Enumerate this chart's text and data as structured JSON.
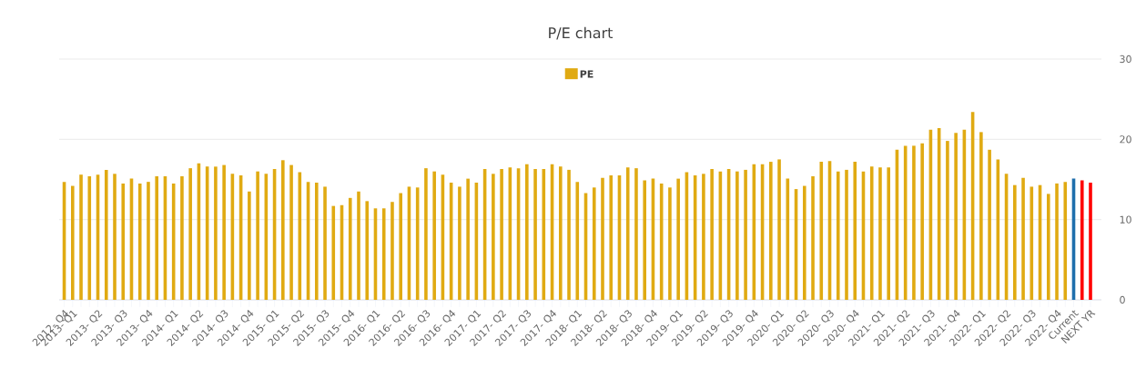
{
  "chart_data": {
    "type": "bar",
    "title": "P/E chart",
    "categories": [
      "2012- Q4",
      "2013- Q1",
      null,
      null,
      "2013- Q2",
      null,
      null,
      "2013- Q3",
      null,
      null,
      "2013- Q4",
      null,
      null,
      "2014- Q1",
      null,
      null,
      "2014- Q2",
      null,
      null,
      "2014- Q3",
      null,
      null,
      "2014- Q4",
      null,
      null,
      "2015- Q1",
      null,
      null,
      "2015- Q2",
      null,
      null,
      "2015- Q3",
      null,
      null,
      "2015- Q4",
      null,
      null,
      "2016- Q1",
      null,
      null,
      "2016- Q2",
      null,
      null,
      "2016- Q3",
      null,
      null,
      "2016- Q4",
      null,
      null,
      "2017- Q1",
      null,
      null,
      "2017- Q2",
      null,
      null,
      "2017- Q3",
      null,
      null,
      "2017- Q4",
      null,
      null,
      "2018- Q1",
      null,
      null,
      "2018- Q2",
      null,
      null,
      "2018- Q3",
      null,
      null,
      "2018- Q4",
      null,
      null,
      "2019- Q1",
      null,
      null,
      "2019- Q2",
      null,
      null,
      "2019- Q3",
      null,
      null,
      "2019- Q4",
      null,
      null,
      "2020- Q1",
      null,
      null,
      "2020- Q2",
      null,
      null,
      "2020- Q3",
      null,
      null,
      "2020- Q4",
      null,
      null,
      "2021- Q1",
      null,
      null,
      "2021- Q2",
      null,
      null,
      "2021- Q3",
      null,
      null,
      "2021- Q4",
      null,
      null,
      "2022- Q1",
      null,
      null,
      "2022- Q2",
      null,
      null,
      "2022- Q3",
      null,
      null,
      "2022- Q4",
      null,
      "Current",
      null,
      "NEXT YR"
    ],
    "series": [
      {
        "name": "PE",
        "color": "#e0aa12",
        "values": [
          14.7,
          14.2,
          15.6,
          15.4,
          15.6,
          16.2,
          15.7,
          14.5,
          15.1,
          14.5,
          14.7,
          15.4,
          15.4,
          14.5,
          15.4,
          16.4,
          17.0,
          16.6,
          16.6,
          16.8,
          15.7,
          15.5,
          13.5,
          16.0,
          15.7,
          16.3,
          17.4,
          16.8,
          15.9,
          14.7,
          14.6,
          14.1,
          11.7,
          11.8,
          12.7,
          13.5,
          12.3,
          11.4,
          11.4,
          12.2,
          13.3,
          14.1,
          14.0,
          16.4,
          16.0,
          15.6,
          14.6,
          14.1,
          15.1,
          14.6,
          16.3,
          15.7,
          16.3,
          16.5,
          16.4,
          16.9,
          16.3,
          16.3,
          16.9,
          16.6,
          16.2,
          14.7,
          13.3,
          14.0,
          15.2,
          15.5,
          15.5,
          16.5,
          16.4,
          14.9,
          15.1,
          14.5,
          14.0,
          15.1,
          15.9,
          15.5,
          15.7,
          16.3,
          16.0,
          16.3,
          16.0,
          16.2,
          16.9,
          16.9,
          17.2,
          17.5,
          15.1,
          13.8,
          14.2,
          15.4,
          17.2,
          17.3,
          16.0,
          16.2,
          17.2,
          16.0,
          16.6,
          16.5,
          16.5,
          18.7,
          19.2,
          19.2,
          19.5,
          21.2,
          21.4,
          19.8,
          20.8,
          21.2,
          23.4,
          20.9,
          18.7,
          17.5,
          15.7,
          14.3,
          15.2,
          14.1,
          14.3,
          13.2,
          14.5,
          14.7,
          15.1,
          14.9,
          14.6
        ],
        "colors": [
          "#e0aa12",
          "#e0aa12",
          "#e0aa12",
          "#e0aa12",
          "#e0aa12",
          "#e0aa12",
          "#e0aa12",
          "#e0aa12",
          "#e0aa12",
          "#e0aa12",
          "#e0aa12",
          "#e0aa12",
          "#e0aa12",
          "#e0aa12",
          "#e0aa12",
          "#e0aa12",
          "#e0aa12",
          "#e0aa12",
          "#e0aa12",
          "#e0aa12",
          "#e0aa12",
          "#e0aa12",
          "#e0aa12",
          "#e0aa12",
          "#e0aa12",
          "#e0aa12",
          "#e0aa12",
          "#e0aa12",
          "#e0aa12",
          "#e0aa12",
          "#e0aa12",
          "#e0aa12",
          "#e0aa12",
          "#e0aa12",
          "#e0aa12",
          "#e0aa12",
          "#e0aa12",
          "#e0aa12",
          "#e0aa12",
          "#e0aa12",
          "#e0aa12",
          "#e0aa12",
          "#e0aa12",
          "#e0aa12",
          "#e0aa12",
          "#e0aa12",
          "#e0aa12",
          "#e0aa12",
          "#e0aa12",
          "#e0aa12",
          "#e0aa12",
          "#e0aa12",
          "#e0aa12",
          "#e0aa12",
          "#e0aa12",
          "#e0aa12",
          "#e0aa12",
          "#e0aa12",
          "#e0aa12",
          "#e0aa12",
          "#e0aa12",
          "#e0aa12",
          "#e0aa12",
          "#e0aa12",
          "#e0aa12",
          "#e0aa12",
          "#e0aa12",
          "#e0aa12",
          "#e0aa12",
          "#e0aa12",
          "#e0aa12",
          "#e0aa12",
          "#e0aa12",
          "#e0aa12",
          "#e0aa12",
          "#e0aa12",
          "#e0aa12",
          "#e0aa12",
          "#e0aa12",
          "#e0aa12",
          "#e0aa12",
          "#e0aa12",
          "#e0aa12",
          "#e0aa12",
          "#e0aa12",
          "#e0aa12",
          "#e0aa12",
          "#e0aa12",
          "#e0aa12",
          "#e0aa12",
          "#e0aa12",
          "#e0aa12",
          "#e0aa12",
          "#e0aa12",
          "#e0aa12",
          "#e0aa12",
          "#e0aa12",
          "#e0aa12",
          "#e0aa12",
          "#e0aa12",
          "#e0aa12",
          "#e0aa12",
          "#e0aa12",
          "#e0aa12",
          "#e0aa12",
          "#e0aa12",
          "#e0aa12",
          "#e0aa12",
          "#e0aa12",
          "#e0aa12",
          "#e0aa12",
          "#e0aa12",
          "#e0aa12",
          "#e0aa12",
          "#e0aa12",
          "#e0aa12",
          "#e0aa12",
          "#e0aa12",
          "#e0aa12",
          "#e0aa12",
          "#1f6fad",
          "#ff0000",
          "#ff0000"
        ]
      }
    ],
    "ylim": [
      0,
      30
    ],
    "yticks": [
      0,
      10,
      20,
      30
    ],
    "grid": "y",
    "legend": "top"
  }
}
